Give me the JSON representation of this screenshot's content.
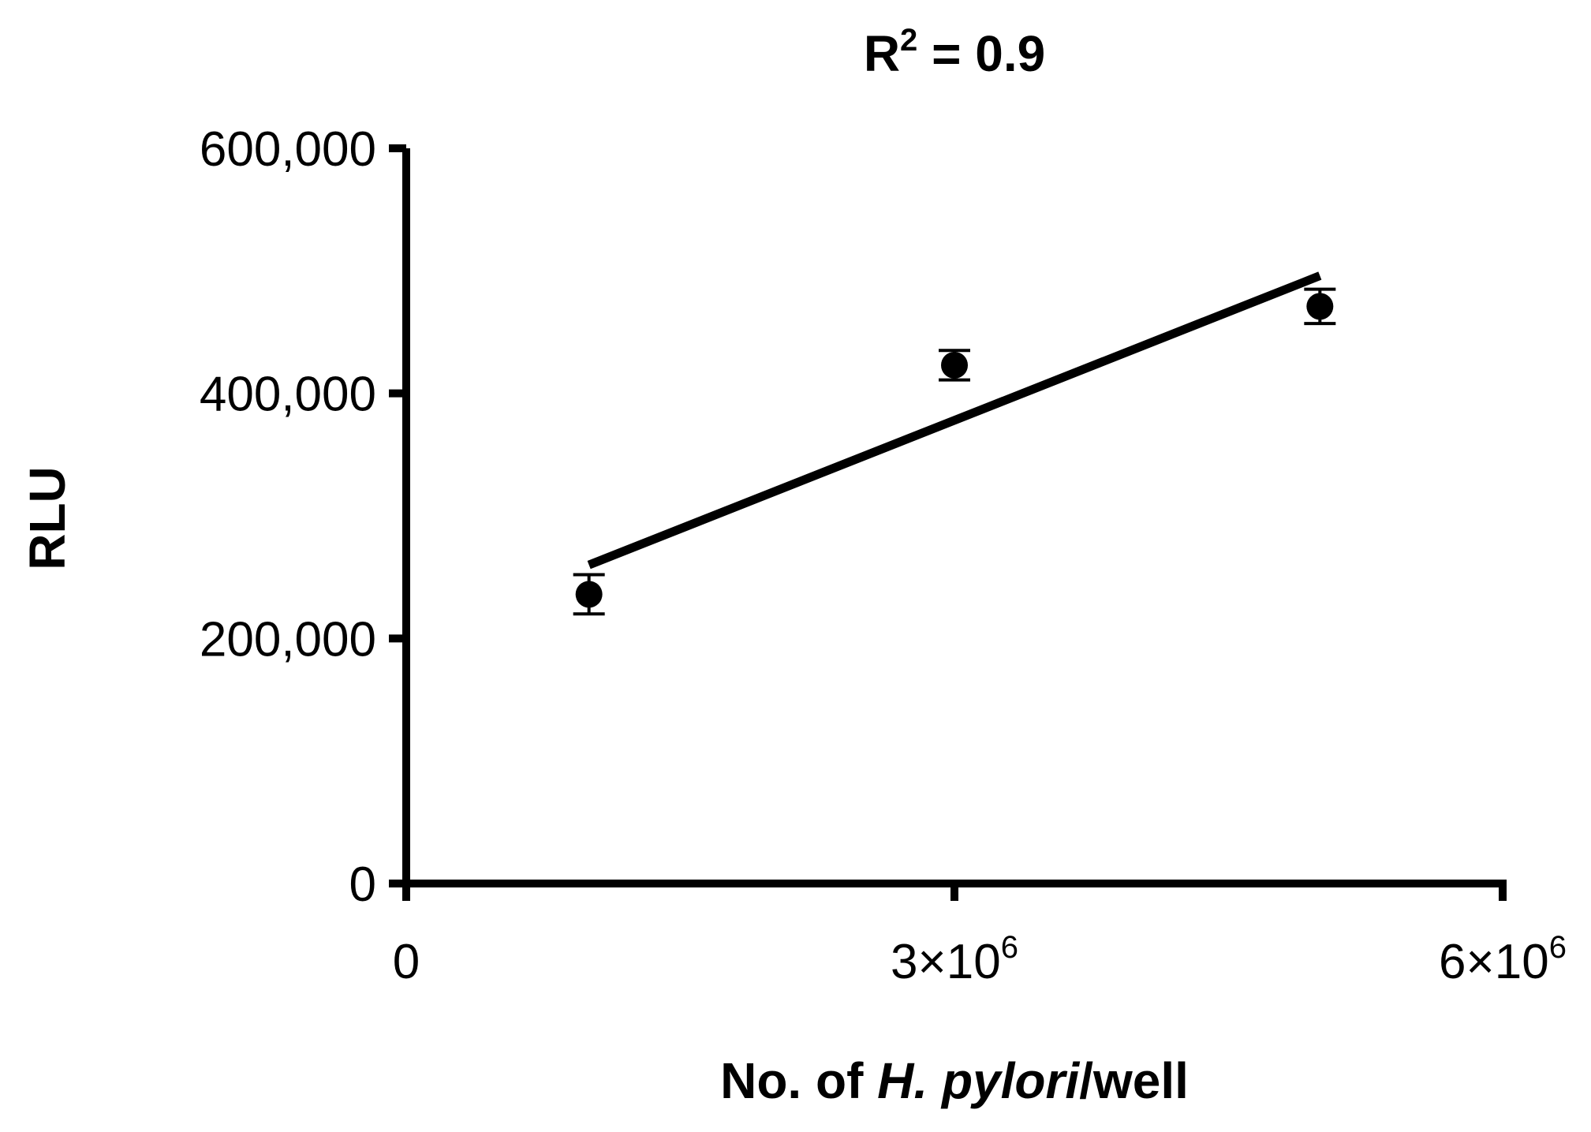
{
  "chart_data": {
    "type": "scatter",
    "title": {
      "base": "R",
      "sup": "2",
      "rest": " = 0.9"
    },
    "xlabel": {
      "prefix": "No. of ",
      "italic": "H. pylori",
      "suffix": "/well"
    },
    "ylabel": "RLU",
    "xlim": [
      0,
      6000000
    ],
    "ylim": [
      0,
      600000
    ],
    "xticks": [
      {
        "value": 0,
        "base": "0",
        "sup": ""
      },
      {
        "value": 3000000,
        "base": "3×10",
        "sup": "6"
      },
      {
        "value": 6000000,
        "base": "6×10",
        "sup": "6"
      }
    ],
    "yticks": [
      {
        "value": 0,
        "label": "0"
      },
      {
        "value": 200000,
        "label": "200,000"
      },
      {
        "value": 400000,
        "label": "400,000"
      },
      {
        "value": 600000,
        "label": "600,000"
      }
    ],
    "points": [
      {
        "x": 1000000,
        "y": 236000,
        "err": 16000
      },
      {
        "x": 3000000,
        "y": 423000,
        "err": 12000
      },
      {
        "x": 5000000,
        "y": 471000,
        "err": 14000
      }
    ],
    "fit_line": {
      "x": [
        1000000,
        5000000
      ],
      "y": [
        260000,
        496000
      ]
    },
    "grid": false,
    "legend": "none"
  }
}
